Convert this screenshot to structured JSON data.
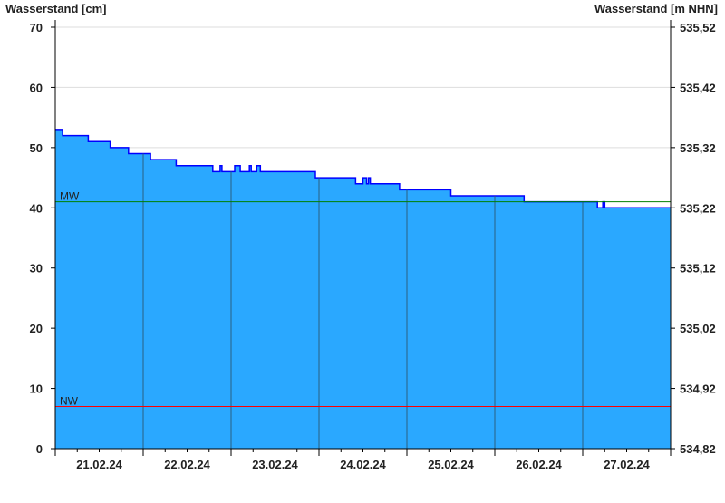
{
  "chart_data": {
    "type": "area",
    "ylabel_left": "Wasserstand [cm]",
    "ylabel_right": "Wasserstand [m NHN]",
    "ylim": [
      0,
      70
    ],
    "yticks_left": [
      "0",
      "10",
      "20",
      "30",
      "40",
      "50",
      "60",
      "70"
    ],
    "yticks_right": [
      "534,82",
      "534,92",
      "535,02",
      "535,12",
      "535,22",
      "535,32",
      "535,42",
      "535,52"
    ],
    "xlim": [
      "21.02.24 00:00",
      "28.02.24 00:00"
    ],
    "xtick_labels": [
      "21.02.24",
      "22.02.24",
      "23.02.24",
      "24.02.24",
      "25.02.24",
      "26.02.24",
      "27.02.24"
    ],
    "grid": true,
    "reference_lines": [
      {
        "label": "MW",
        "value": 41,
        "color": "#008000"
      },
      {
        "label": "NW",
        "value": 7,
        "color": "#ff0000"
      }
    ],
    "series": [
      {
        "fill_color": "#2aa8ff",
        "line_color": "#0000ff",
        "steps": [
          [
            "21.02.24 00:00",
            53
          ],
          [
            "21.02.24 02:00",
            52
          ],
          [
            "21.02.24 09:00",
            51
          ],
          [
            "21.02.24 15:00",
            50
          ],
          [
            "21.02.24 20:00",
            49
          ],
          [
            "22.02.24 02:00",
            48
          ],
          [
            "22.02.24 09:00",
            47
          ],
          [
            "22.02.24 19:00",
            46
          ],
          [
            "22.02.24 21:00",
            47
          ],
          [
            "22.02.24 21:30",
            46
          ],
          [
            "23.02.24 01:00",
            47
          ],
          [
            "23.02.24 02:30",
            46
          ],
          [
            "23.02.24 05:00",
            47
          ],
          [
            "23.02.24 05:30",
            46
          ],
          [
            "23.02.24 07:00",
            47
          ],
          [
            "23.02.24 08:00",
            46
          ],
          [
            "23.02.24 23:00",
            45
          ],
          [
            "24.02.24 10:00",
            44
          ],
          [
            "24.02.24 12:00",
            45
          ],
          [
            "24.02.24 13:00",
            44
          ],
          [
            "24.02.24 13:30",
            45
          ],
          [
            "24.02.24 14:00",
            44
          ],
          [
            "24.02.24 22:00",
            43
          ],
          [
            "25.02.24 12:00",
            42
          ],
          [
            "26.02.24 08:00",
            41
          ],
          [
            "27.02.24 04:00",
            40
          ],
          [
            "27.02.24 05:30",
            41
          ],
          [
            "27.02.24 06:00",
            40
          ],
          [
            "28.02.24 00:00",
            40
          ]
        ]
      }
    ]
  }
}
